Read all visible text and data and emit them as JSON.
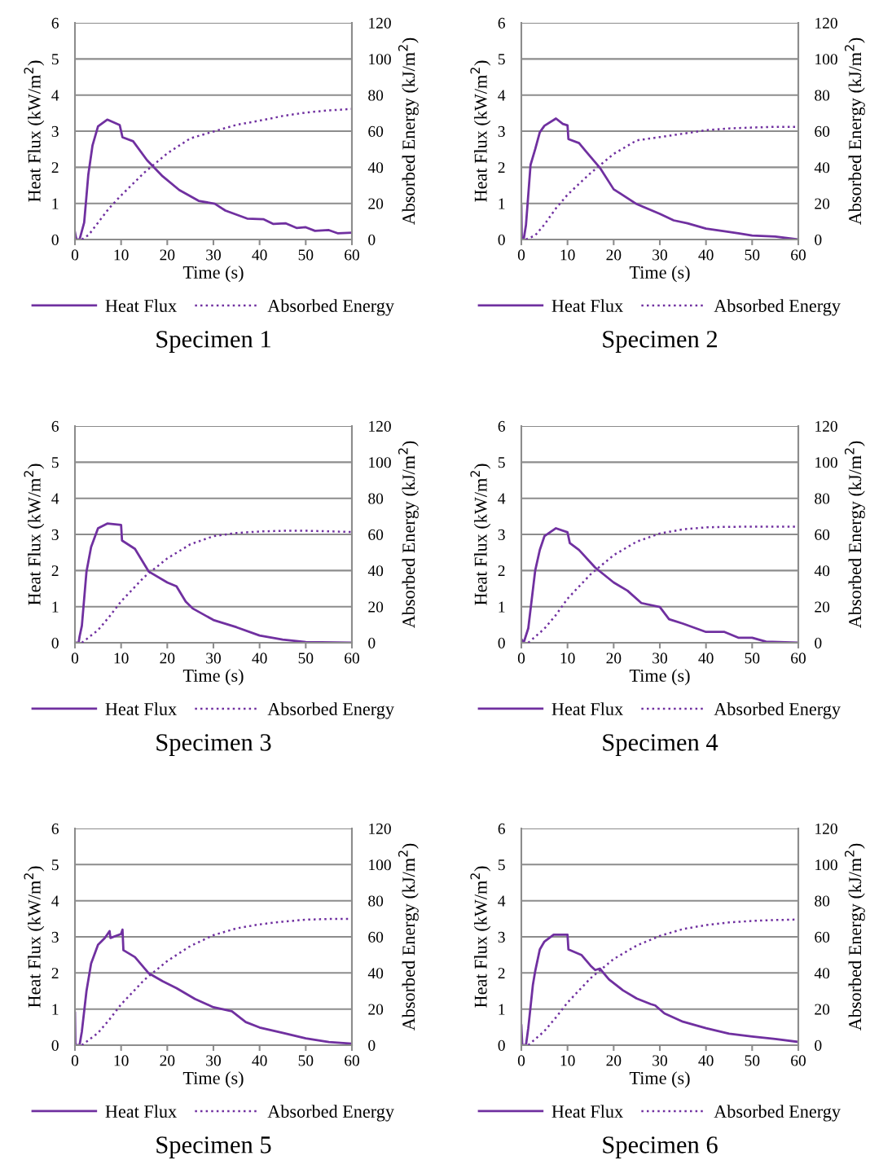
{
  "chart_data": [
    {
      "type": "line",
      "title": "Specimen 1",
      "xlabel": "Time (s)",
      "ylabel": "Heat Flux (kW/m$^{2}$)",
      "y2label": "Absorbed Energy (kJ/m$^{2}$)",
      "xlim": [
        0,
        60
      ],
      "xticks": [
        0,
        10,
        20,
        30,
        40,
        50,
        60
      ],
      "ylim": [
        0,
        6
      ],
      "yticks": [
        0,
        1,
        2,
        3,
        4,
        5,
        6
      ],
      "y2lim": [
        0,
        120
      ],
      "y2ticks": [
        0,
        20,
        40,
        60,
        80,
        100,
        120
      ],
      "grid": "y",
      "legend": "bottom",
      "series": [
        {
          "name": "Heat Flux",
          "color": "#7030a0",
          "line_style": "solid",
          "x": [
            0,
            0.3,
            1,
            2,
            2.9,
            3.8,
            5,
            7,
            9.7,
            10.3,
            12.6,
            15.6,
            19,
            22.6,
            26.8,
            30.3,
            32.6,
            37.3,
            40.9,
            43,
            45.6,
            48,
            50,
            52,
            55,
            57,
            60
          ],
          "values": [
            0.2,
            0,
            0,
            0.47,
            1.8,
            2.6,
            3.13,
            3.32,
            3.17,
            2.83,
            2.72,
            2.2,
            1.75,
            1.37,
            1.07,
            0.99,
            0.8,
            0.58,
            0.56,
            0.43,
            0.45,
            0.32,
            0.34,
            0.24,
            0.26,
            0.17,
            0.19
          ]
        },
        {
          "name": "Absorbed Energy",
          "color": "#7030a0",
          "line_style": "dotted",
          "axis": "y2",
          "x": [
            1.5,
            3,
            5,
            7.5,
            10,
            15,
            20,
            25,
            30,
            35,
            40,
            45,
            50,
            55,
            60
          ],
          "values": [
            0,
            2.6,
            9.3,
            17.6,
            24.4,
            37,
            47.7,
            56,
            59.8,
            63.5,
            65.8,
            68.4,
            70.3,
            71.5,
            72.3
          ]
        }
      ]
    },
    {
      "type": "line",
      "title": "Specimen 2",
      "xlabel": "Time (s)",
      "ylabel": "Heat Flux (kW/m$^{2}$)",
      "y2label": "Absorbed Energy (kJ/m$^{2}$)",
      "xlim": [
        0,
        60
      ],
      "xticks": [
        0,
        10,
        20,
        30,
        40,
        50,
        60
      ],
      "ylim": [
        0,
        6
      ],
      "yticks": [
        0,
        1,
        2,
        3,
        4,
        5,
        6
      ],
      "y2lim": [
        0,
        120
      ],
      "y2ticks": [
        0,
        20,
        40,
        60,
        80,
        100,
        120
      ],
      "grid": "y",
      "legend": "bottom",
      "series": [
        {
          "name": "Heat Flux",
          "color": "#7030a0",
          "line_style": "solid",
          "x": [
            0,
            0.1,
            0.5,
            1,
            2,
            3,
            4,
            5,
            7.5,
            9,
            10,
            10.2,
            12.5,
            14,
            17,
            20,
            25,
            30,
            33,
            36,
            40,
            44,
            47,
            50,
            55,
            60
          ],
          "values": [
            0.94,
            0,
            0,
            0.4,
            2.07,
            2.5,
            2.97,
            3.15,
            3.35,
            3.2,
            3.16,
            2.78,
            2.67,
            2.44,
            1.99,
            1.39,
            0.98,
            0.71,
            0.53,
            0.45,
            0.3,
            0.23,
            0.17,
            0.11,
            0.08,
            0
          ]
        },
        {
          "name": "Absorbed Energy",
          "color": "#7030a0",
          "line_style": "dotted",
          "axis": "y2",
          "x": [
            1,
            3,
            5,
            7.5,
            10,
            15,
            20,
            25,
            30,
            35,
            40,
            45,
            50,
            55,
            60
          ],
          "values": [
            0,
            2.3,
            8.3,
            17.3,
            24.8,
            36.8,
            47.4,
            54.9,
            56.7,
            58.6,
            60.5,
            61.5,
            62,
            62.4,
            62.4
          ]
        }
      ]
    },
    {
      "type": "line",
      "title": "Specimen 3",
      "xlabel": "Time (s)",
      "ylabel": "Heat Flux (kW/m$^{2}$)",
      "y2label": "Absorbed Energy (kJ/m$^{2}$)",
      "xlim": [
        0,
        60
      ],
      "xticks": [
        0,
        10,
        20,
        30,
        40,
        50,
        60
      ],
      "ylim": [
        0,
        6
      ],
      "yticks": [
        0,
        1,
        2,
        3,
        4,
        5,
        6
      ],
      "y2lim": [
        0,
        120
      ],
      "y2ticks": [
        0,
        20,
        40,
        60,
        80,
        100,
        120
      ],
      "grid": "y",
      "legend": "bottom",
      "series": [
        {
          "name": "Heat Flux",
          "color": "#7030a0",
          "line_style": "solid",
          "x": [
            0,
            0.8,
            1,
            1.5,
            2.5,
            3.5,
            5,
            7,
            10,
            10.2,
            13,
            16,
            20,
            22,
            24,
            25.5,
            30,
            35,
            40,
            45,
            50,
            60
          ],
          "values": [
            0,
            0,
            0.17,
            0.47,
            1.97,
            2.65,
            3.17,
            3.3,
            3.26,
            2.83,
            2.6,
            1.97,
            1.67,
            1.56,
            1.14,
            0.95,
            0.63,
            0.43,
            0.2,
            0.09,
            0.02,
            0
          ]
        },
        {
          "name": "Absorbed Energy",
          "color": "#7030a0",
          "line_style": "dotted",
          "axis": "y2",
          "x": [
            1.5,
            5,
            7.5,
            10,
            15,
            20,
            25,
            30,
            35,
            40,
            45,
            50,
            55,
            60
          ],
          "values": [
            0,
            7,
            14.6,
            22.9,
            36.4,
            46.7,
            54.5,
            59,
            60.8,
            61.6,
            62,
            62,
            61.7,
            61.3
          ]
        }
      ]
    },
    {
      "type": "line",
      "title": "Specimen 4",
      "xlabel": "Time (s)",
      "ylabel": "Heat Flux (kW/m$^{2}$)",
      "y2label": "Absorbed Energy (kJ/m$^{2}$)",
      "xlim": [
        0,
        60
      ],
      "xticks": [
        0,
        10,
        20,
        30,
        40,
        50,
        60
      ],
      "ylim": [
        0,
        6
      ],
      "yticks": [
        0,
        1,
        2,
        3,
        4,
        5,
        6
      ],
      "y2lim": [
        0,
        120
      ],
      "y2ticks": [
        0,
        20,
        40,
        60,
        80,
        100,
        120
      ],
      "grid": "y",
      "legend": "bottom",
      "series": [
        {
          "name": "Heat Flux",
          "color": "#7030a0",
          "line_style": "solid",
          "x": [
            0,
            0.5,
            1.5,
            3,
            4,
            5,
            7.5,
            10,
            10.5,
            12.5,
            16,
            20,
            23,
            26,
            30,
            32,
            35,
            40,
            44,
            47,
            50,
            53,
            60
          ],
          "values": [
            0.1,
            0,
            0.4,
            2.0,
            2.57,
            2.95,
            3.17,
            3.06,
            2.76,
            2.57,
            2.08,
            1.67,
            1.44,
            1.1,
            0.99,
            0.65,
            0.53,
            0.3,
            0.3,
            0.14,
            0.14,
            0.03,
            0
          ]
        },
        {
          "name": "Absorbed Energy",
          "color": "#7030a0",
          "line_style": "dotted",
          "axis": "y2",
          "x": [
            1.5,
            5,
            7.5,
            10,
            15,
            20,
            25,
            30,
            35,
            40,
            45,
            50,
            60
          ],
          "values": [
            0,
            7.8,
            15.4,
            24.4,
            37.9,
            48.5,
            56,
            60.5,
            62.8,
            63.9,
            64.2,
            64.3,
            64.3
          ]
        }
      ]
    },
    {
      "type": "line",
      "title": "Specimen 5",
      "xlabel": "Time (s)",
      "ylabel": "Heat Flux (kW/m$^{2}$)",
      "y2label": "Absorbed Energy (kJ/m$^{2}$)",
      "xlim": [
        0,
        60
      ],
      "xticks": [
        0,
        10,
        20,
        30,
        40,
        50,
        60
      ],
      "ylim": [
        0,
        6
      ],
      "yticks": [
        0,
        1,
        2,
        3,
        4,
        5,
        6
      ],
      "y2lim": [
        0,
        120
      ],
      "y2ticks": [
        0,
        20,
        40,
        60,
        80,
        100,
        120
      ],
      "grid": "y",
      "legend": "bottom",
      "series": [
        {
          "name": "Heat Flux",
          "color": "#7030a0",
          "line_style": "solid",
          "x": [
            0,
            0.1,
            1,
            1.5,
            2.5,
            3.5,
            5,
            6.5,
            7.5,
            7.7,
            10,
            10.3,
            10.5,
            13,
            16,
            19,
            22,
            26,
            30,
            34,
            37,
            40,
            45,
            50,
            55,
            60
          ],
          "values": [
            0.9,
            0,
            0,
            0.38,
            1.5,
            2.26,
            2.78,
            2.97,
            3.16,
            2.97,
            3.08,
            3.2,
            2.63,
            2.44,
            1.99,
            1.77,
            1.58,
            1.28,
            1.05,
            0.94,
            0.64,
            0.49,
            0.34,
            0.19,
            0.09,
            0.04
          ]
        },
        {
          "name": "Absorbed Energy",
          "color": "#7030a0",
          "line_style": "dotted",
          "axis": "y2",
          "x": [
            1.5,
            5,
            7.5,
            10,
            15,
            20,
            25,
            30,
            35,
            40,
            45,
            50,
            55,
            60
          ],
          "values": [
            0,
            6.8,
            14.3,
            22.6,
            36.1,
            46.6,
            54.9,
            60.9,
            64.7,
            66.9,
            68.4,
            69.5,
            69.9,
            69.9
          ]
        }
      ]
    },
    {
      "type": "line",
      "title": "Specimen 6",
      "xlabel": "Time (s)",
      "ylabel": "Heat Flux (kW/m$^{2}$)",
      "y2label": "Absorbed Energy (kJ/m$^{2}$)",
      "xlim": [
        0,
        60
      ],
      "xticks": [
        0,
        10,
        20,
        30,
        40,
        50,
        60
      ],
      "ylim": [
        0,
        6
      ],
      "yticks": [
        0,
        1,
        2,
        3,
        4,
        5,
        6
      ],
      "y2lim": [
        0,
        120
      ],
      "y2ticks": [
        0,
        20,
        40,
        60,
        80,
        100,
        120
      ],
      "grid": "y",
      "legend": "bottom",
      "series": [
        {
          "name": "Heat Flux",
          "color": "#7030a0",
          "line_style": "solid",
          "x": [
            0,
            0.2,
            1,
            1.5,
            2.5,
            3,
            4,
            5,
            7,
            10,
            10.2,
            13,
            15,
            16,
            17,
            19,
            22,
            25,
            28,
            29,
            31,
            35,
            40,
            45,
            50,
            55,
            60
          ],
          "values": [
            0.55,
            0,
            0,
            0.47,
            1.67,
            2.05,
            2.65,
            2.87,
            3.06,
            3.06,
            2.65,
            2.5,
            2.2,
            2.08,
            2.12,
            1.82,
            1.52,
            1.29,
            1.14,
            1.1,
            0.88,
            0.65,
            0.47,
            0.32,
            0.24,
            0.17,
            0.09
          ]
        },
        {
          "name": "Absorbed Energy",
          "color": "#7030a0",
          "line_style": "dotted",
          "axis": "y2",
          "x": [
            1.5,
            5,
            7.5,
            10,
            15,
            20,
            25,
            30,
            35,
            40,
            45,
            50,
            55,
            60
          ],
          "values": [
            0,
            7.8,
            15.4,
            23.6,
            37.1,
            47.7,
            55.2,
            60.5,
            64.3,
            66.5,
            68,
            68.8,
            69.3,
            69.6
          ]
        }
      ]
    }
  ]
}
